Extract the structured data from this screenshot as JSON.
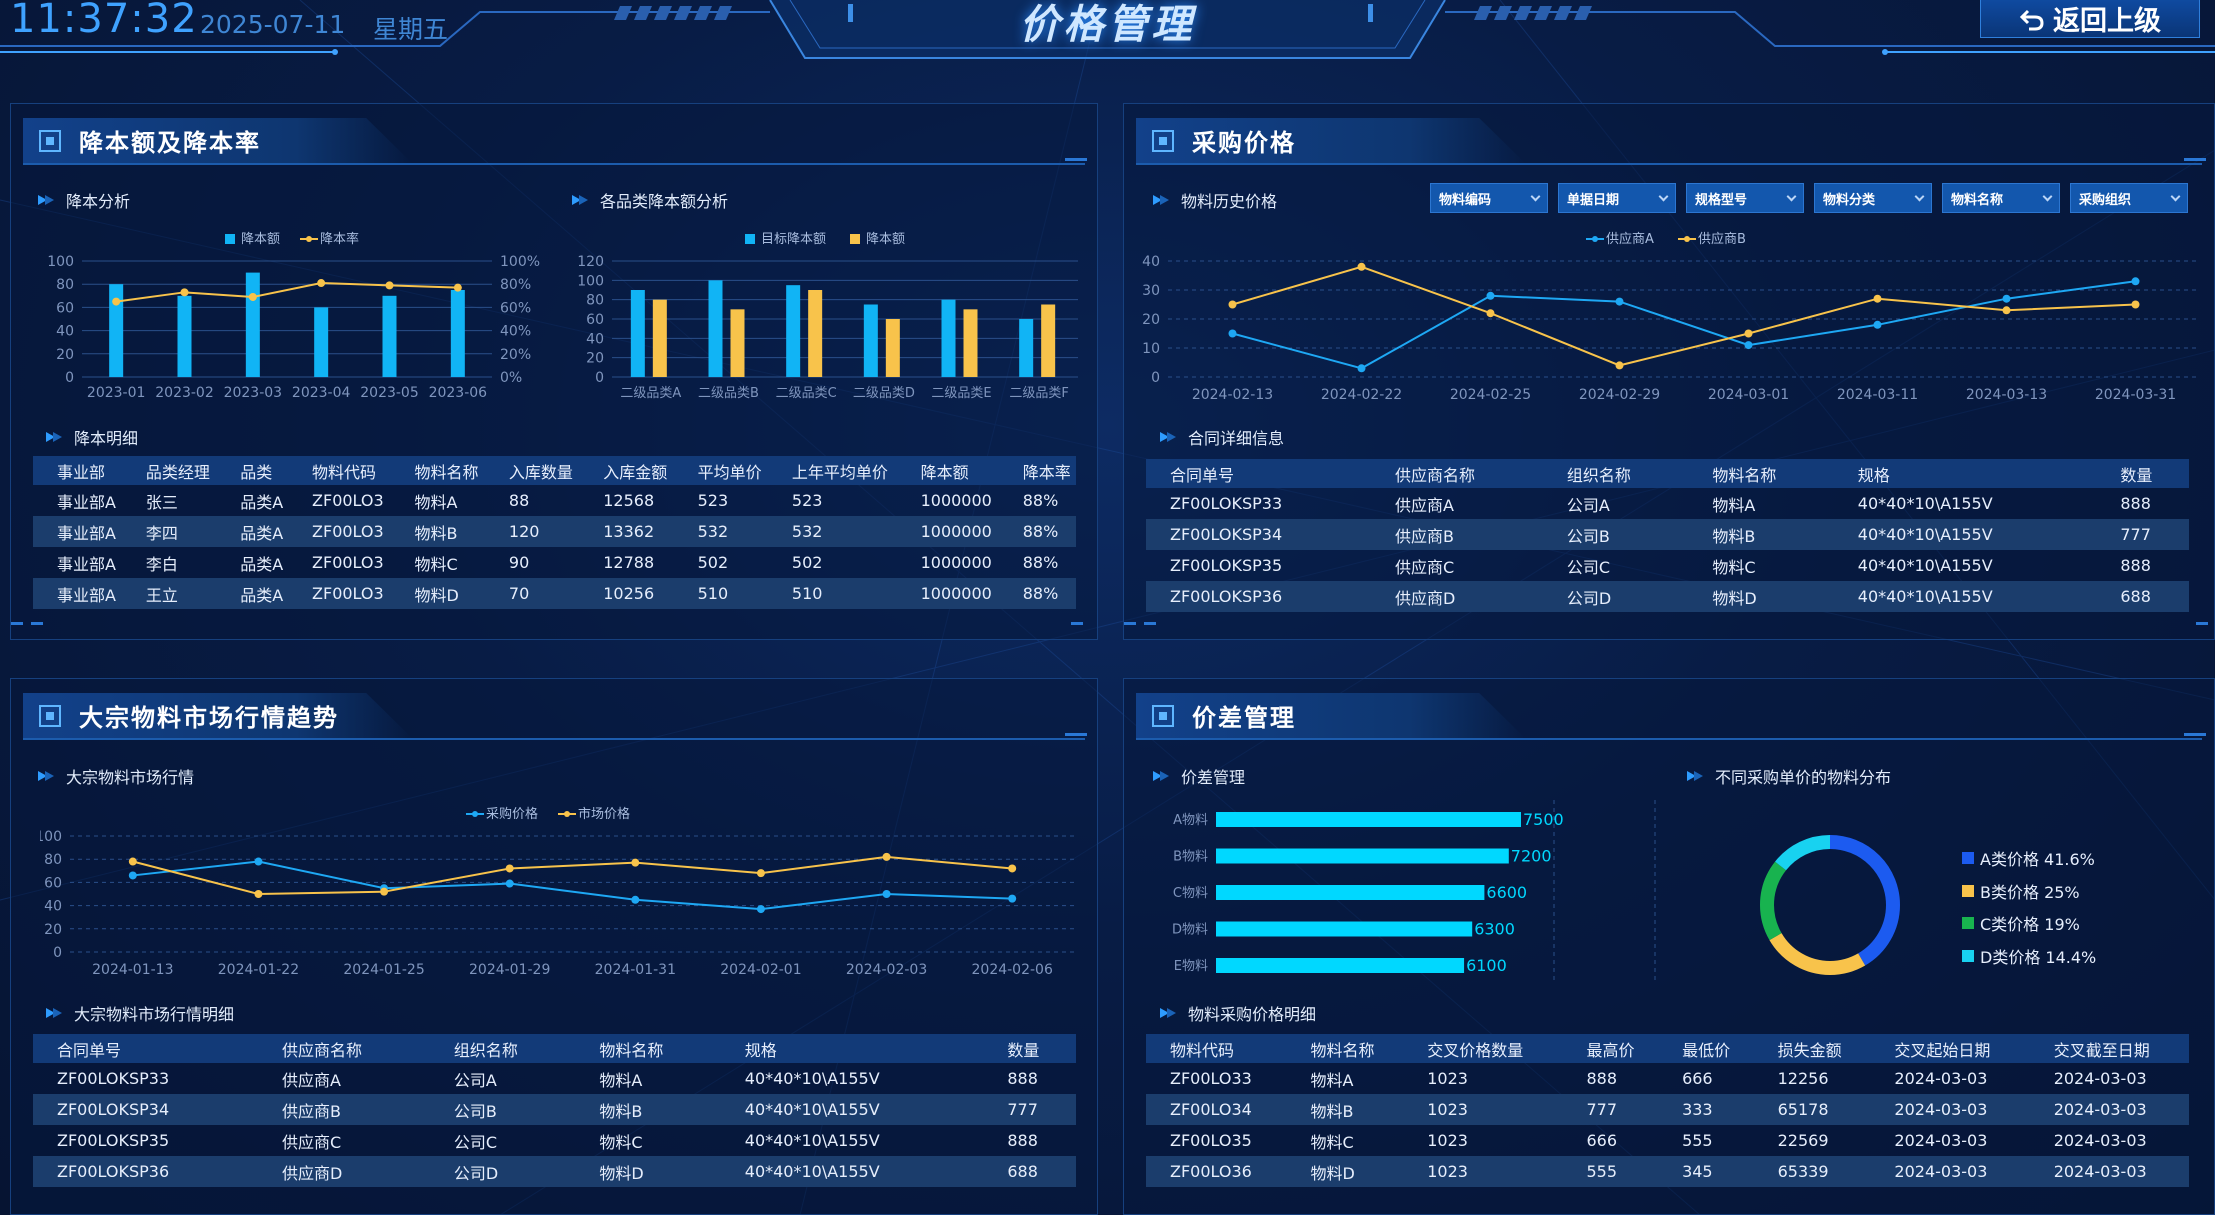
{
  "header": {
    "time": "11:37:32",
    "date": "2025-07-11",
    "weekday": "星期五",
    "title": "价格管理",
    "back_label": "返回上级"
  },
  "panels": {
    "cost": {
      "title": "降本额及降本率",
      "sub1": "降本分析",
      "sub2": "各品类降本额分析",
      "sub3": "降本明细"
    },
    "purchase": {
      "title": "采购价格",
      "sub1": "物料历史价格",
      "sub2": "合同详细信息"
    },
    "market": {
      "title": "大宗物料市场行情趋势",
      "sub1": "大宗物料市场行情",
      "sub2": "大宗物料市场行情明细"
    },
    "diff": {
      "title": "价差管理",
      "sub1": "价差管理",
      "sub2": "不同采购单价的物料分布",
      "sub3": "物料采购价格明细"
    }
  },
  "filters": [
    "物料编码",
    "单据日期",
    "规格型号",
    "物料分类",
    "物料名称",
    "采购组织"
  ],
  "tables": {
    "cost_detail": {
      "headers": [
        "事业部",
        "品类经理",
        "品类",
        "物料代码",
        "物料名称",
        "入库数量",
        "入库金额",
        "平均单价",
        "上年平均单价",
        "降本额",
        "降本率"
      ],
      "rows": [
        [
          "事业部A",
          "张三",
          "品类A",
          "ZF00LO3",
          "物料A",
          "88",
          "12568",
          "523",
          "523",
          "1000000",
          "88%"
        ],
        [
          "事业部A",
          "李四",
          "品类A",
          "ZF00LO3",
          "物料B",
          "120",
          "13362",
          "532",
          "532",
          "1000000",
          "88%"
        ],
        [
          "事业部A",
          "李白",
          "品类A",
          "ZF00LO3",
          "物料C",
          "90",
          "12788",
          "502",
          "502",
          "1000000",
          "88%"
        ],
        [
          "事业部A",
          "王立",
          "品类A",
          "ZF00LO3",
          "物料D",
          "70",
          "10256",
          "510",
          "510",
          "1000000",
          "88%"
        ]
      ]
    },
    "contract": {
      "headers": [
        "合同单号",
        "供应商名称",
        "组织名称",
        "物料名称",
        "规格",
        "数量"
      ],
      "rows": [
        [
          "ZF00LOKSP33",
          "供应商A",
          "公司A",
          "物料A",
          "40*40*10\\A155V",
          "888"
        ],
        [
          "ZF00LOKSP34",
          "供应商B",
          "公司B",
          "物料B",
          "40*40*10\\A155V",
          "777"
        ],
        [
          "ZF00LOKSP35",
          "供应商C",
          "公司C",
          "物料C",
          "40*40*10\\A155V",
          "888"
        ],
        [
          "ZF00LOKSP36",
          "供应商D",
          "公司D",
          "物料D",
          "40*40*10\\A155V",
          "688"
        ]
      ]
    },
    "market_detail": {
      "headers": [
        "合同单号",
        "供应商名称",
        "组织名称",
        "物料名称",
        "规格",
        "数量"
      ],
      "rows": [
        [
          "ZF00LOKSP33",
          "供应商A",
          "公司A",
          "物料A",
          "40*40*10\\A155V",
          "888"
        ],
        [
          "ZF00LOKSP34",
          "供应商B",
          "公司B",
          "物料B",
          "40*40*10\\A155V",
          "777"
        ],
        [
          "ZF00LOKSP35",
          "供应商C",
          "公司C",
          "物料C",
          "40*40*10\\A155V",
          "888"
        ],
        [
          "ZF00LOKSP36",
          "供应商D",
          "公司D",
          "物料D",
          "40*40*10\\A155V",
          "688"
        ]
      ]
    },
    "price_detail": {
      "headers": [
        "物料代码",
        "物料名称",
        "交叉价格数量",
        "最高价",
        "最低价",
        "损失金额",
        "交叉起始日期",
        "交叉截至日期"
      ],
      "rows": [
        [
          "ZF00LO33",
          "物料A",
          "1023",
          "888",
          "666",
          "12256",
          "2024-03-03",
          "2024-03-03"
        ],
        [
          "ZF00LO34",
          "物料B",
          "1023",
          "777",
          "333",
          "65178",
          "2024-03-03",
          "2024-03-03"
        ],
        [
          "ZF00LO35",
          "物料C",
          "1023",
          "666",
          "555",
          "22569",
          "2024-03-03",
          "2024-03-03"
        ],
        [
          "ZF00LO36",
          "物料D",
          "1023",
          "555",
          "345",
          "65339",
          "2024-03-03",
          "2024-03-03"
        ]
      ]
    }
  },
  "chart_data": [
    {
      "id": "cost",
      "type": "bar",
      "categories": [
        "2023-01",
        "2023-02",
        "2023-03",
        "2023-04",
        "2023-05",
        "2023-06"
      ],
      "series": [
        {
          "name": "降本额",
          "type": "bar",
          "values": [
            80,
            70,
            90,
            60,
            70,
            75
          ],
          "color": "#11b4f5"
        },
        {
          "name": "降本率",
          "type": "line",
          "axis": "right",
          "values": [
            65,
            73,
            69,
            81,
            79,
            77
          ],
          "color": "#f8c34b"
        }
      ],
      "yticks": [
        "0",
        "20",
        "40",
        "60",
        "80",
        "100"
      ],
      "y2ticks": [
        "0%",
        "20%",
        "40%",
        "60%",
        "80%",
        "100%"
      ],
      "ylim": [
        0,
        100
      ],
      "y2lim": [
        0,
        100
      ]
    },
    {
      "id": "category",
      "type": "bar",
      "categories": [
        "二级品类A",
        "二级品类B",
        "二级品类C",
        "二级品类D",
        "二级品类E",
        "二级品类F"
      ],
      "series": [
        {
          "name": "目标降本额",
          "values": [
            90,
            100,
            95,
            75,
            80,
            60
          ],
          "color": "#11b4f5"
        },
        {
          "name": "降本额",
          "values": [
            80,
            70,
            90,
            60,
            70,
            75
          ],
          "color": "#f8c34b"
        }
      ],
      "yticks": [
        "0",
        "20",
        "40",
        "60",
        "80",
        "100",
        "120"
      ],
      "ylim": [
        0,
        120
      ]
    },
    {
      "id": "history",
      "type": "line",
      "x": [
        "2024-02-13",
        "2024-02-22",
        "2024-02-25",
        "2024-02-29",
        "2024-03-01",
        "2024-03-11",
        "2024-03-13",
        "2024-03-31"
      ],
      "series": [
        {
          "name": "供应商A",
          "values": [
            15,
            3,
            28,
            26,
            11,
            18,
            27,
            33
          ],
          "color": "#1ea8f4"
        },
        {
          "name": "供应商B",
          "values": [
            25,
            38,
            22,
            4,
            15,
            27,
            23,
            25
          ],
          "color": "#f8c34b"
        }
      ],
      "yticks": [
        "0",
        "10",
        "20",
        "30",
        "40"
      ],
      "ylim": [
        0,
        40
      ]
    },
    {
      "id": "market",
      "type": "line",
      "x": [
        "2024-01-13",
        "2024-01-22",
        "2024-01-25",
        "2024-01-29",
        "2024-01-31",
        "2024-02-01",
        "2024-02-03",
        "2024-02-06"
      ],
      "series": [
        {
          "name": "采购价格",
          "values": [
            66,
            78,
            55,
            59,
            45,
            37,
            50,
            46
          ],
          "color": "#1ea8f4"
        },
        {
          "name": "市场价格",
          "values": [
            78,
            50,
            52,
            72,
            77,
            68,
            82,
            72
          ],
          "color": "#f8c34b"
        }
      ],
      "yticks": [
        "0",
        "20",
        "40",
        "60",
        "80",
        "100"
      ],
      "ylim": [
        0,
        100
      ]
    },
    {
      "id": "diff",
      "type": "bar",
      "orientation": "horizontal",
      "categories": [
        "A物料",
        "B物料",
        "C物料",
        "D物料",
        "E物料"
      ],
      "values": [
        7500,
        7200,
        6600,
        6300,
        6100
      ],
      "color": "#00d8ff"
    },
    {
      "id": "dist",
      "type": "pie",
      "donut": true,
      "labels": [
        "A类价格",
        "B类价格",
        "C类价格",
        "D类价格"
      ],
      "values": [
        41.6,
        25,
        19,
        14.4
      ],
      "display": [
        "41.6%",
        "25%",
        "19%",
        "14.4%"
      ],
      "colors": [
        "#1c5bf0",
        "#f8c34b",
        "#18b34f",
        "#18d2f0"
      ]
    }
  ]
}
